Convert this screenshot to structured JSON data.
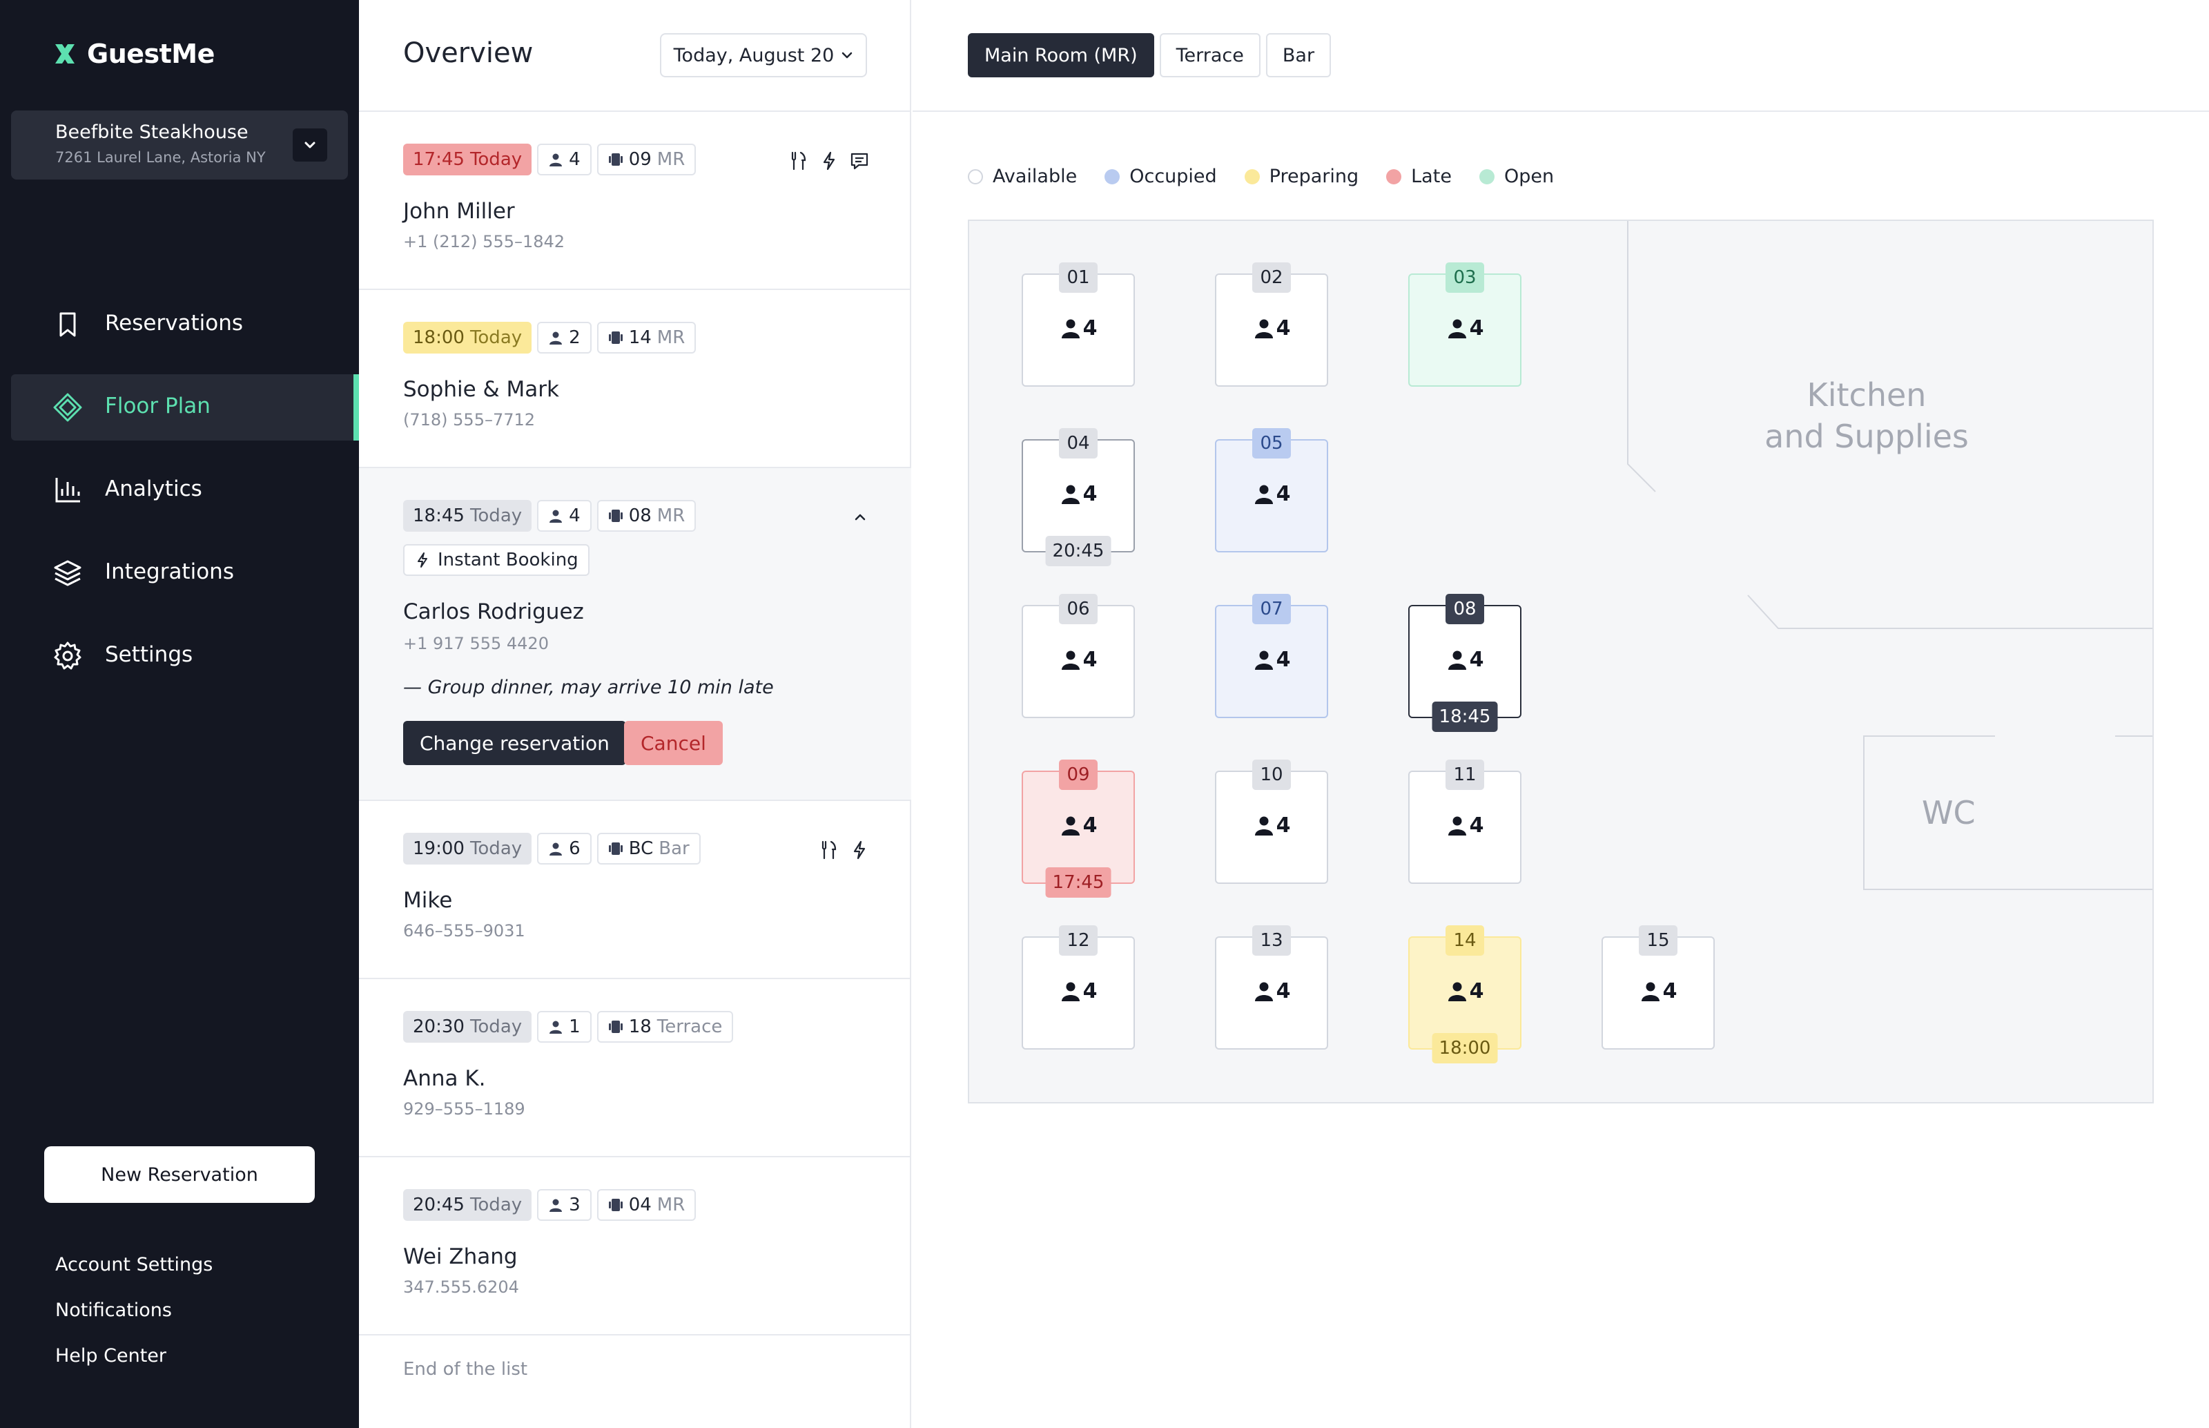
{
  "app": {
    "brand": "GuestMe"
  },
  "venue": {
    "name": "Beefbite Steakhouse",
    "address": "7261 Laurel Lane, Astoria NY"
  },
  "nav": [
    {
      "label": "Reservations",
      "icon": "bookmark-icon",
      "active": false
    },
    {
      "label": "Floor Plan",
      "icon": "floor-plan-icon",
      "active": true
    },
    {
      "label": "Analytics",
      "icon": "bar-chart-icon",
      "active": false
    },
    {
      "label": "Integrations",
      "icon": "layers-icon",
      "active": false
    },
    {
      "label": "Settings",
      "icon": "gear-icon",
      "active": false
    }
  ],
  "sidebar_footer": {
    "new_reservation": "New Reservation",
    "links": [
      "Account Settings",
      "Notifications",
      "Help Center"
    ]
  },
  "list": {
    "title": "Overview",
    "date": "Today, August 20",
    "end_text": "End of the list",
    "reservations": [
      {
        "time": "17:45",
        "day": "Today",
        "status": "late",
        "guests": "4",
        "table": "09",
        "room": "MR",
        "name": "John Miller",
        "phone": "+1 (212) 555–1842",
        "icons": [
          "dining-icon",
          "instant-booking-icon",
          "message-icon"
        ]
      },
      {
        "time": "18:00",
        "day": "Today",
        "status": "preparing",
        "guests": "2",
        "table": "14",
        "room": "MR",
        "name": "Sophie & Mark",
        "phone": "(718) 555–7712",
        "icons": []
      },
      {
        "time": "18:45",
        "day": "Today",
        "status": "neutral",
        "guests": "4",
        "table": "08",
        "room": "MR",
        "tag": "Instant Booking",
        "name": "Carlos Rodriguez",
        "phone": "+1 917 555 4420",
        "note": "— Group dinner, may arrive 10 min late",
        "actions": {
          "change": "Change reservation",
          "cancel": "Cancel"
        },
        "expanded": true
      },
      {
        "time": "19:00",
        "day": "Today",
        "status": "neutral",
        "guests": "6",
        "table": "BC",
        "room": "Bar",
        "name": "Mike",
        "phone": "646–555–9031",
        "icons": [
          "dining-icon",
          "instant-booking-icon"
        ]
      },
      {
        "time": "20:30",
        "day": "Today",
        "status": "neutral",
        "guests": "1",
        "table": "18",
        "room": "Terrace",
        "name": "Anna K.",
        "phone": "929–555–1189",
        "icons": []
      },
      {
        "time": "20:45",
        "day": "Today",
        "status": "neutral",
        "guests": "3",
        "table": "04",
        "room": "MR",
        "name": "Wei Zhang",
        "phone": "347.555.6204",
        "icons": []
      }
    ]
  },
  "floor": {
    "rooms": [
      {
        "label": "Main Room (MR)",
        "active": true
      },
      {
        "label": "Terrace",
        "active": false
      },
      {
        "label": "Bar",
        "active": false
      }
    ],
    "legend": [
      {
        "label": "Available",
        "color": "#ffffff"
      },
      {
        "label": "Occupied",
        "color": "#b9cbf0"
      },
      {
        "label": "Preparing",
        "color": "#fbe99a"
      },
      {
        "label": "Late",
        "color": "#f2a3a4"
      },
      {
        "label": "Open",
        "color": "#b8ead4"
      }
    ],
    "areas": {
      "kitchen": "Kitchen\nand Supplies",
      "wc": "WC"
    },
    "tables": [
      {
        "num": "01",
        "seats": "4",
        "status": "available"
      },
      {
        "num": "02",
        "seats": "4",
        "status": "available"
      },
      {
        "num": "03",
        "seats": "4",
        "status": "open"
      },
      {
        "num": "04",
        "seats": "4",
        "status": "available",
        "time": "20:45"
      },
      {
        "num": "05",
        "seats": "4",
        "status": "occupied"
      },
      {
        "num": "06",
        "seats": "4",
        "status": "available"
      },
      {
        "num": "07",
        "seats": "4",
        "status": "occupied"
      },
      {
        "num": "08",
        "seats": "4",
        "status": "selected",
        "time": "18:45"
      },
      {
        "num": "09",
        "seats": "4",
        "status": "late",
        "time": "17:45"
      },
      {
        "num": "10",
        "seats": "4",
        "status": "available"
      },
      {
        "num": "11",
        "seats": "4",
        "status": "available"
      },
      {
        "num": "12",
        "seats": "4",
        "status": "available"
      },
      {
        "num": "13",
        "seats": "4",
        "status": "available"
      },
      {
        "num": "14",
        "seats": "4",
        "status": "preparing",
        "time": "18:00"
      },
      {
        "num": "15",
        "seats": "4",
        "status": "available"
      }
    ]
  }
}
